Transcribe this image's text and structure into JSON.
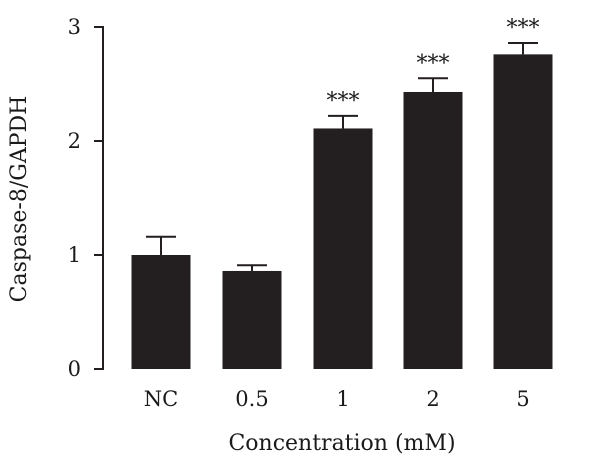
{
  "chart_data": {
    "type": "bar",
    "categories": [
      "NC",
      "0.5",
      "1",
      "2",
      "5"
    ],
    "values": [
      1.0,
      0.86,
      2.11,
      2.43,
      2.76
    ],
    "errors": [
      0.16,
      0.05,
      0.11,
      0.12,
      0.1
    ],
    "annotations": [
      "",
      "",
      "***",
      "***",
      "***"
    ],
    "xlabel": "Concentration (mM)",
    "ylabel": "Caspase-8/GAPDH",
    "ylim": [
      0,
      3
    ],
    "yticks": [
      "0",
      "1",
      "2",
      "3"
    ],
    "grid": false,
    "bar_color": "#231f20"
  }
}
